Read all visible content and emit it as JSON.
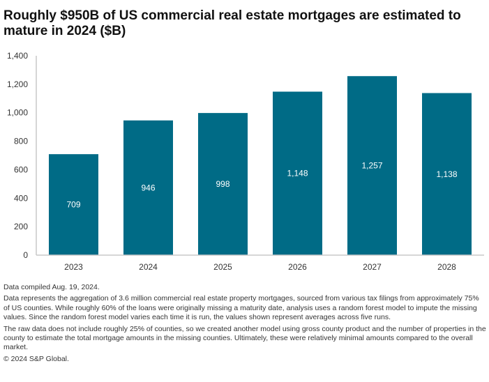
{
  "chart_data": {
    "type": "bar",
    "title": "Roughly $950B of US commercial real estate mortgages are estimated to mature in 2024 ($B)",
    "categories": [
      "2023",
      "2024",
      "2025",
      "2026",
      "2027",
      "2028"
    ],
    "values": [
      709,
      946,
      998,
      1148,
      1257,
      1138
    ],
    "data_labels": [
      "709",
      "946",
      "998",
      "1,148",
      "1,257",
      "1,138"
    ],
    "ylim": [
      0,
      1400
    ],
    "yticks": [
      0,
      200,
      400,
      600,
      800,
      1000,
      1200,
      1400
    ],
    "ytick_labels": [
      "0",
      "200",
      "400",
      "600",
      "800",
      "1,000",
      "1,200",
      "1,400"
    ],
    "xlabel": "",
    "ylabel": "",
    "grid": false,
    "bar_color": "#006b86"
  },
  "notes": {
    "compiled": "Data compiled Aug. 19, 2024.",
    "p1": "Data represents the aggregation of 3.6 million commercial real estate property mortgages, sourced from various tax filings from approximately 75% of US counties. While roughly 60% of the loans were originally missing a maturity date, analysis uses a random forest model to impute the missing values. Since the random forest model varies each time it is run, the values shown represent averages across five runs.",
    "p2": "The raw data does not include roughly 25% of counties, so we created another model using gross county product and the number of properties in the county to estimate the total mortgage amounts in the missing counties. Ultimately, these were relatively minimal amounts compared to the overall market.",
    "copyright": "© 2024 S&P Global."
  }
}
